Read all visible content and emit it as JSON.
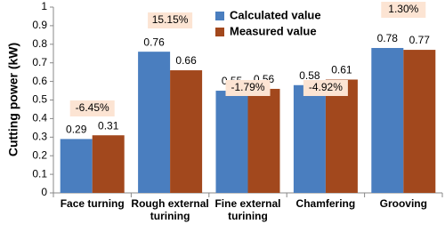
{
  "chart_data": {
    "type": "bar",
    "y_label": "Cutting power (kW)",
    "categories": [
      "Face turning",
      "Rough external turining",
      "Fine external turining",
      "Chamfering",
      "Grooving"
    ],
    "series": [
      {
        "name": "Calculated value",
        "color": "#4a7ebf",
        "values": [
          0.29,
          0.76,
          0.55,
          0.58,
          0.78
        ]
      },
      {
        "name": "Measured value",
        "color": "#a2481d",
        "values": [
          0.31,
          0.66,
          0.56,
          0.61,
          0.77
        ]
      }
    ],
    "annotations": [
      "-6.45%",
      "15.15%",
      "-1.79%",
      "-4.92%",
      "1.30%"
    ],
    "ylim": [
      0,
      1
    ],
    "yticks": [
      0,
      0.1,
      0.2,
      0.3,
      0.4,
      0.5,
      0.6,
      0.7,
      0.8,
      0.9,
      1
    ],
    "grid": false
  }
}
